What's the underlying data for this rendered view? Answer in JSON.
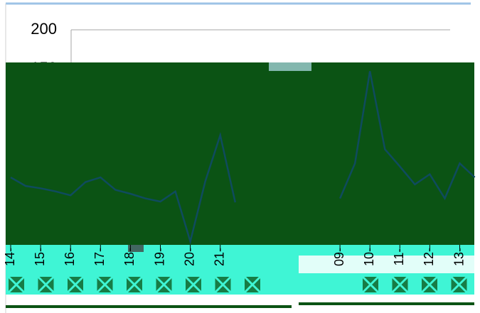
{
  "chart_data": {
    "type": "line",
    "x": [
      0,
      0.5,
      1,
      1.5,
      2,
      2.5,
      3,
      3.5,
      4,
      4.5,
      5,
      5.5,
      6,
      6.5,
      7,
      7.5,
      8,
      8.5,
      9,
      9.5,
      10,
      10.5,
      11,
      11.5,
      12,
      12.5,
      13,
      13.5,
      14,
      14.5,
      15,
      15.5
    ],
    "series": [
      {
        "color": "#0f4b5e",
        "values": [
          11,
          0,
          -3,
          -7,
          -12,
          5,
          11,
          -5,
          -10,
          -16,
          -20,
          -7,
          -71,
          6,
          65,
          -21,
          null,
          null,
          null,
          null,
          null,
          null,
          -16,
          29,
          147,
          47,
          25,
          2,
          15,
          -16,
          29,
          11
        ]
      }
    ],
    "xlim": [
      -0.2,
      15.5
    ],
    "xticks": [
      {
        "value": 0,
        "label": "14-"
      },
      {
        "value": 1,
        "label": "15-"
      },
      {
        "value": 2,
        "label": "16-"
      },
      {
        "value": 3,
        "label": "17-"
      },
      {
        "value": 4,
        "label": "18-"
      },
      {
        "value": 5,
        "label": "19-"
      },
      {
        "value": 6,
        "label": "20-"
      },
      {
        "value": 7,
        "label": "21-"
      },
      {
        "value": 11,
        "label": "09-"
      },
      {
        "value": 12,
        "label": "10-"
      },
      {
        "value": 13,
        "label": "11-"
      },
      {
        "value": 14,
        "label": "12-"
      },
      {
        "value": 15,
        "label": "13-"
      }
    ],
    "ylim": [
      -75,
      200
    ],
    "yticks": [
      150,
      200
    ],
    "grid": true
  }
}
